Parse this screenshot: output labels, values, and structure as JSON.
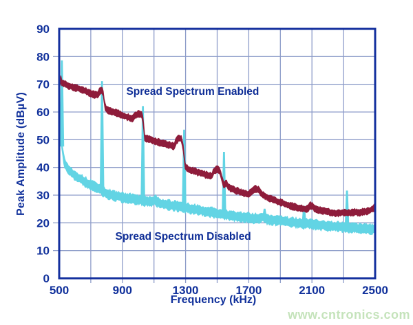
{
  "watermark": {
    "text": "www.cntronics.com",
    "color": "#c2e2b8"
  },
  "colors": {
    "background": "#ffffff",
    "axis_frame": "#14309e",
    "gridline": "#8d9cc9",
    "tick_label": "#10309b",
    "series_enabled": "#8e1c3b",
    "series_disabled": "#62d4e4"
  },
  "chart_data": {
    "type": "line",
    "title": "",
    "xlabel": "Frequency (kHz)",
    "ylabel": "Peak Amplitude (dBµV)",
    "xlim": [
      500,
      2500
    ],
    "ylim": [
      0,
      90
    ],
    "x_ticks": [
      500,
      900,
      1300,
      1700,
      2100,
      2500
    ],
    "y_ticks": [
      0,
      10,
      20,
      30,
      40,
      50,
      60,
      70,
      80,
      90
    ],
    "x_grid_step_khz": 200,
    "y_grid_step_db": 10,
    "grid": true,
    "legend_position": "none",
    "annotations": [
      {
        "text": "Spread Spectrum Enabled",
        "x_khz": 1345,
        "y_db": 67.2
      },
      {
        "text": "Spread Spectrum Disabled",
        "x_khz": 1285,
        "y_db": 15.0
      }
    ],
    "series": [
      {
        "name": "Spread Spectrum Enabled",
        "color": "#8e1c3b",
        "band_half_db": 0.75,
        "noise_db": 0.65,
        "anchors": [
          [
            502,
            63
          ],
          [
            505,
            72
          ],
          [
            507,
            76.5
          ],
          [
            509,
            73
          ],
          [
            512,
            70.5
          ],
          [
            530,
            70.3
          ],
          [
            560,
            69.5
          ],
          [
            600,
            68.8
          ],
          [
            640,
            68.2
          ],
          [
            680,
            67.2
          ],
          [
            720,
            66.3
          ],
          [
            745,
            66.0
          ],
          [
            755,
            67.5
          ],
          [
            768,
            68.0
          ],
          [
            778,
            67.0
          ],
          [
            788,
            62.5
          ],
          [
            795,
            61.0
          ],
          [
            820,
            60.5
          ],
          [
            860,
            59.8
          ],
          [
            900,
            58.8
          ],
          [
            940,
            58.0
          ],
          [
            965,
            57.5
          ],
          [
            980,
            58.8
          ],
          [
            1000,
            59.3
          ],
          [
            1022,
            59.3
          ],
          [
            1032,
            57.0
          ],
          [
            1040,
            50.8
          ],
          [
            1060,
            50.3
          ],
          [
            1100,
            49.6
          ],
          [
            1150,
            48.8
          ],
          [
            1200,
            48.0
          ],
          [
            1228,
            47.6
          ],
          [
            1240,
            49.5
          ],
          [
            1262,
            50.8
          ],
          [
            1275,
            50.0
          ],
          [
            1288,
            46.0
          ],
          [
            1297,
            40.3
          ],
          [
            1320,
            39.3
          ],
          [
            1360,
            38.6
          ],
          [
            1400,
            37.8
          ],
          [
            1440,
            37.2
          ],
          [
            1468,
            37.0
          ],
          [
            1480,
            38.8
          ],
          [
            1500,
            39.4
          ],
          [
            1516,
            38.8
          ],
          [
            1530,
            36.0
          ],
          [
            1541,
            33.8
          ],
          [
            1550,
            34.0
          ],
          [
            1558,
            34.6
          ],
          [
            1570,
            33.0
          ],
          [
            1600,
            32.0
          ],
          [
            1640,
            31.2
          ],
          [
            1680,
            30.6
          ],
          [
            1700,
            30.4
          ],
          [
            1715,
            31.2
          ],
          [
            1740,
            32.3
          ],
          [
            1762,
            31.8
          ],
          [
            1780,
            30.4
          ],
          [
            1800,
            29.8
          ],
          [
            1840,
            28.7
          ],
          [
            1880,
            27.8
          ],
          [
            1920,
            27.0
          ],
          [
            1960,
            26.2
          ],
          [
            2000,
            25.6
          ],
          [
            2040,
            25.1
          ],
          [
            2070,
            25.0
          ],
          [
            2090,
            26.3
          ],
          [
            2105,
            26.0
          ],
          [
            2120,
            25.0
          ],
          [
            2160,
            24.4
          ],
          [
            2200,
            24.0
          ],
          [
            2240,
            23.6
          ],
          [
            2270,
            23.5
          ],
          [
            2300,
            23.8
          ],
          [
            2340,
            23.5
          ],
          [
            2370,
            23.9
          ],
          [
            2400,
            23.6
          ],
          [
            2430,
            24.1
          ],
          [
            2460,
            24.3
          ],
          [
            2485,
            25.2
          ],
          [
            2500,
            25.5
          ]
        ],
        "spikes": []
      },
      {
        "name": "Spread Spectrum Disabled",
        "color": "#62d4e4",
        "band_half_db": 1.1,
        "noise_db": 0.95,
        "anchors": [
          [
            502,
            50
          ],
          [
            506,
            55
          ],
          [
            510,
            52
          ],
          [
            516,
            48
          ],
          [
            522,
            46
          ],
          [
            528,
            43.5
          ],
          [
            535,
            41.5
          ],
          [
            545,
            40.3
          ],
          [
            560,
            39.2
          ],
          [
            580,
            38.0
          ],
          [
            600,
            37.2
          ],
          [
            625,
            36.2
          ],
          [
            650,
            35.3
          ],
          [
            675,
            34.4
          ],
          [
            700,
            33.8
          ],
          [
            725,
            33.2
          ],
          [
            750,
            32.4
          ],
          [
            760,
            32.0
          ],
          [
            785,
            31.0
          ],
          [
            800,
            30.4
          ],
          [
            830,
            30.0
          ],
          [
            860,
            29.6
          ],
          [
            900,
            29.2
          ],
          [
            940,
            28.8
          ],
          [
            980,
            28.5
          ],
          [
            1010,
            28.2
          ],
          [
            1050,
            27.8
          ],
          [
            1080,
            27.5
          ],
          [
            1105,
            28.3
          ],
          [
            1120,
            27.5
          ],
          [
            1160,
            26.8
          ],
          [
            1200,
            26.4
          ],
          [
            1240,
            26.0
          ],
          [
            1280,
            25.6
          ],
          [
            1320,
            25.2
          ],
          [
            1360,
            24.8
          ],
          [
            1400,
            24.4
          ],
          [
            1440,
            24.0
          ],
          [
            1480,
            23.6
          ],
          [
            1520,
            23.2
          ],
          [
            1560,
            22.9
          ],
          [
            1600,
            22.5
          ],
          [
            1650,
            22.1
          ],
          [
            1700,
            21.8
          ],
          [
            1750,
            21.5
          ],
          [
            1790,
            22.3
          ],
          [
            1810,
            21.4
          ],
          [
            1850,
            21.0
          ],
          [
            1900,
            20.7
          ],
          [
            1950,
            20.3
          ],
          [
            2000,
            20.0
          ],
          [
            2050,
            19.7
          ],
          [
            2100,
            19.5
          ],
          [
            2150,
            19.2
          ],
          [
            2200,
            18.9
          ],
          [
            2250,
            18.7
          ],
          [
            2300,
            18.5
          ],
          [
            2350,
            18.2
          ],
          [
            2400,
            18.0
          ],
          [
            2450,
            17.8
          ],
          [
            2500,
            17.6
          ]
        ],
        "spikes": [
          [
            517,
            78.5
          ],
          [
            771,
            71.0
          ],
          [
            1030,
            62.0
          ],
          [
            1291,
            53.5
          ],
          [
            1543,
            45.5
          ],
          [
            1800,
            25.0
          ],
          [
            2050,
            26.0
          ],
          [
            2322,
            31.5
          ]
        ]
      }
    ]
  }
}
